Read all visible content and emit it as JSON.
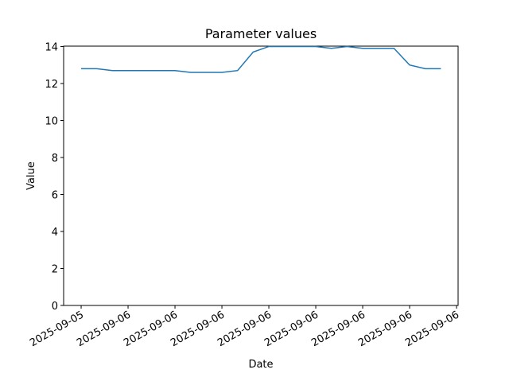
{
  "chart_data": {
    "type": "line",
    "title": "Parameter values",
    "x_label": "Date",
    "y_label": "Value",
    "x": [
      0,
      1,
      2,
      3,
      4,
      5,
      6,
      7,
      8,
      9,
      10,
      11,
      12,
      13,
      14,
      15,
      16,
      17,
      18,
      19,
      20,
      21,
      22,
      23
    ],
    "series": [
      {
        "name": "Value",
        "color": "#1f77b4",
        "values": [
          12.8,
          12.8,
          12.7,
          12.7,
          12.7,
          12.7,
          12.7,
          12.6,
          12.6,
          12.6,
          12.7,
          13.7,
          14.0,
          14.0,
          14.0,
          14.0,
          13.9,
          14.0,
          13.9,
          13.9,
          13.9,
          13.0,
          12.8,
          12.8
        ]
      }
    ],
    "xlim": [
      -1.12,
      24.1
    ],
    "xticks": [
      {
        "value": 0,
        "label": "2025-09-05"
      },
      {
        "value": 3,
        "label": "2025-09-06"
      },
      {
        "value": 6,
        "label": "2025-09-06"
      },
      {
        "value": 9,
        "label": "2025-09-06"
      },
      {
        "value": 12,
        "label": "2025-09-06"
      },
      {
        "value": 15,
        "label": "2025-09-06"
      },
      {
        "value": 18,
        "label": "2025-09-06"
      },
      {
        "value": 21,
        "label": "2025-09-06"
      },
      {
        "value": 24,
        "label": "2025-09-06"
      }
    ],
    "ylim": [
      0,
      14.02
    ],
    "yticks": [
      0,
      2,
      4,
      6,
      8,
      10,
      12,
      14
    ]
  }
}
